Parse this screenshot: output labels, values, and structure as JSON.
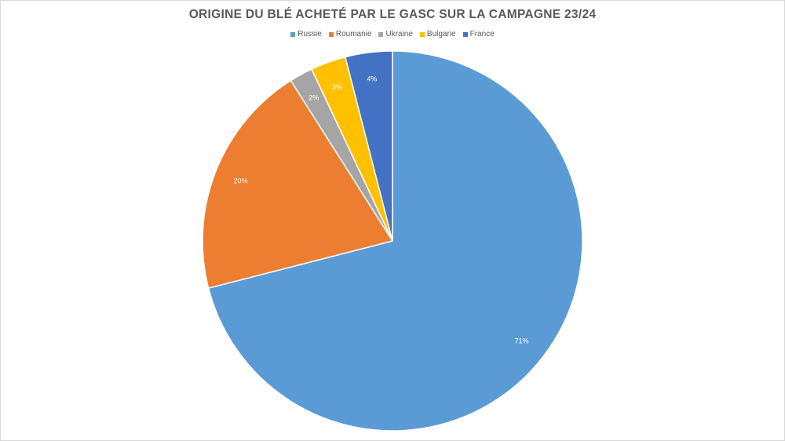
{
  "chart_data": {
    "type": "pie",
    "title": "ORIGINE DU BLÉ ACHETÉ PAR LE GASC SUR LA CAMPAGNE 23/24",
    "legend_position": "top",
    "slices": [
      {
        "name": "Russie",
        "value": 71,
        "label": "71%",
        "color": "#5b9bd5",
        "label_color": "#ffffff"
      },
      {
        "name": "Roumanie",
        "value": 20,
        "label": "20%",
        "color": "#ed7d31",
        "label_color": "#ffffff"
      },
      {
        "name": "Ukraine",
        "value": 2,
        "label": "2%",
        "color": "#a5a5a5",
        "label_color": "#ffffff"
      },
      {
        "name": "Bulgarie",
        "value": 3,
        "label": "3%",
        "color": "#ffc000",
        "label_color": "#ffffff"
      },
      {
        "name": "France",
        "value": 4,
        "label": "4%",
        "color": "#4472c4",
        "label_color": "#ffffff"
      }
    ]
  }
}
